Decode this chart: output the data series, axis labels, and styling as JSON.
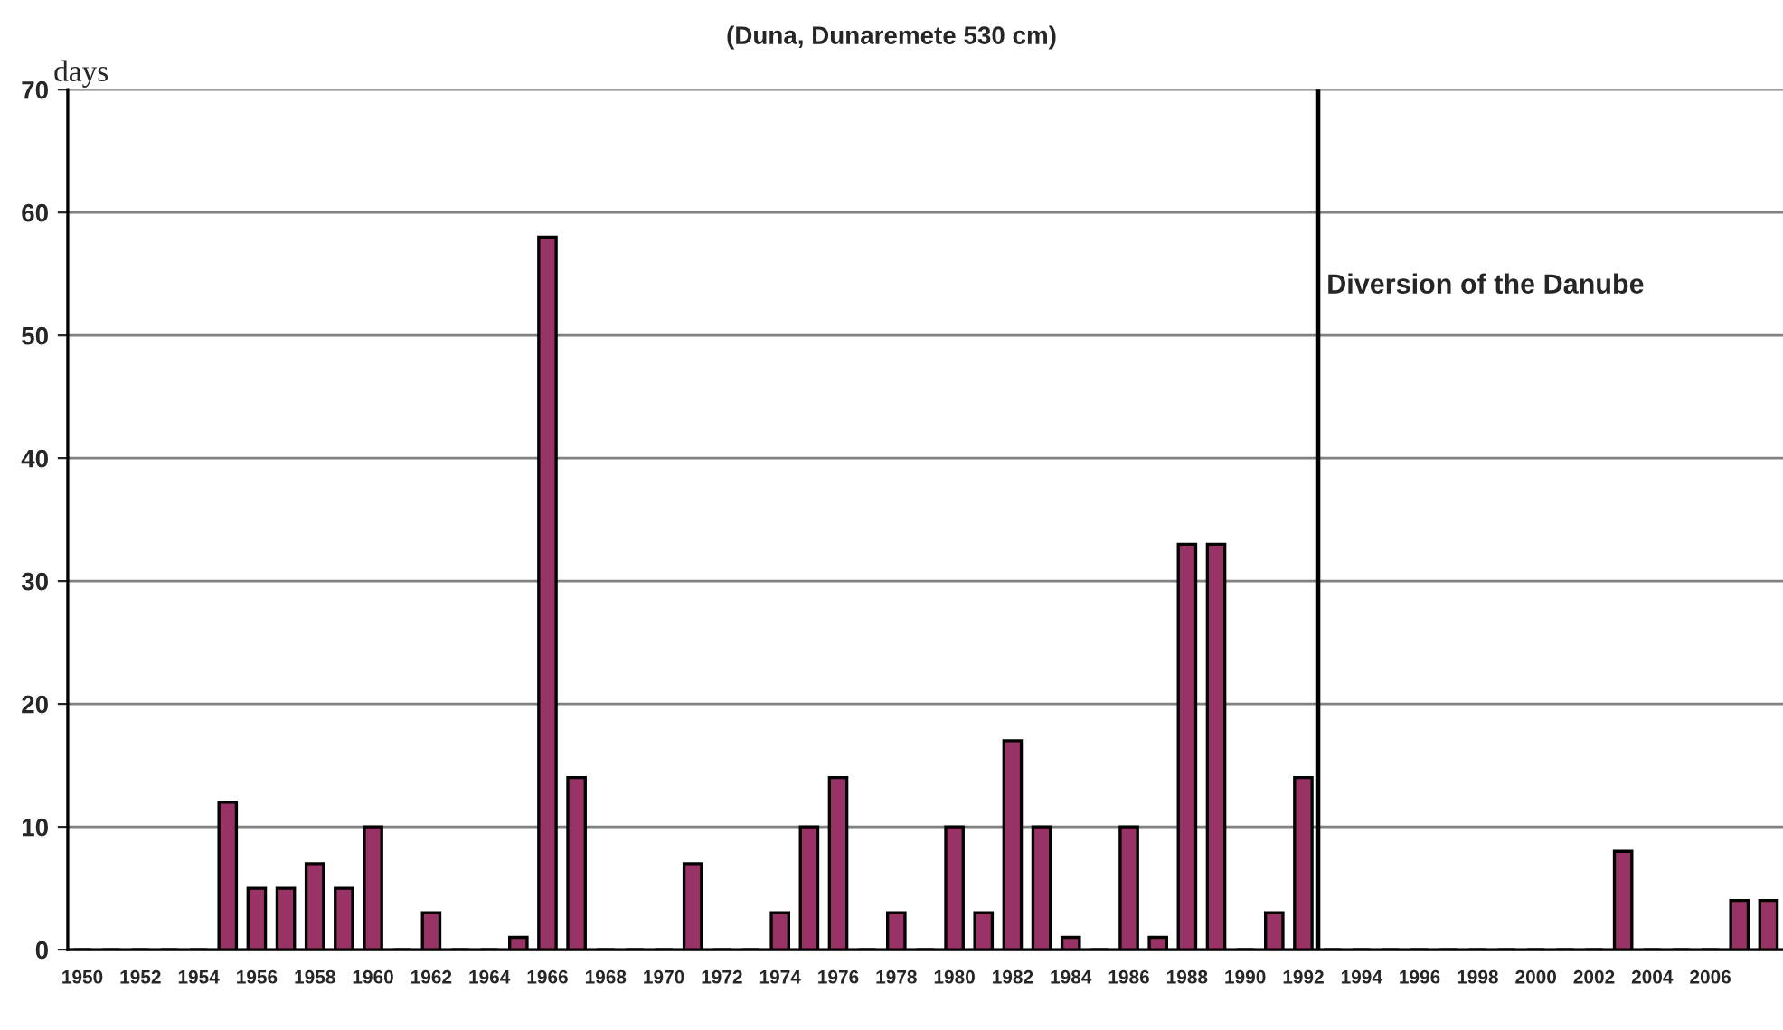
{
  "chart_data": {
    "type": "bar",
    "title": "(Duna, Dunaremete 530 cm)",
    "ylabel": "days",
    "x": [
      1950,
      1951,
      1952,
      1953,
      1954,
      1955,
      1956,
      1957,
      1958,
      1959,
      1960,
      1961,
      1962,
      1963,
      1964,
      1965,
      1966,
      1967,
      1968,
      1969,
      1970,
      1971,
      1972,
      1973,
      1974,
      1975,
      1976,
      1977,
      1978,
      1979,
      1980,
      1981,
      1982,
      1983,
      1984,
      1985,
      1986,
      1987,
      1988,
      1989,
      1990,
      1991,
      1992,
      1993,
      1994,
      1995,
      1996,
      1997,
      1998,
      1999,
      2000,
      2001,
      2002,
      2003,
      2004,
      2005,
      2006,
      2007,
      2008
    ],
    "values": [
      0,
      0,
      0,
      0,
      0,
      12,
      5,
      5,
      7,
      5,
      10,
      0,
      3,
      0,
      0,
      1,
      58,
      14,
      0,
      0,
      0,
      7,
      0,
      0,
      3,
      10,
      14,
      0,
      3,
      0,
      10,
      3,
      17,
      10,
      1,
      0,
      10,
      1,
      33,
      33,
      0,
      3,
      14,
      0,
      0,
      0,
      0,
      0,
      0,
      0,
      0,
      0,
      0,
      8,
      0,
      0,
      0,
      4,
      4
    ],
    "color": "#993366",
    "xlim": [
      1949.5,
      2008.5
    ],
    "xticks": [
      1950,
      1952,
      1954,
      1956,
      1958,
      1960,
      1962,
      1964,
      1966,
      1968,
      1970,
      1972,
      1974,
      1976,
      1978,
      1980,
      1982,
      1984,
      1986,
      1988,
      1990,
      1992,
      1994,
      1996,
      1998,
      2000,
      2002,
      2004,
      2006
    ],
    "ylim": [
      0,
      70
    ],
    "yticks": [
      0,
      10,
      20,
      30,
      40,
      50,
      60,
      70
    ],
    "grid": "y",
    "ref_lines": [
      {
        "axis": "x",
        "value": 1992.5,
        "label": "Diversion of the Danube",
        "color": "#000000"
      }
    ]
  }
}
